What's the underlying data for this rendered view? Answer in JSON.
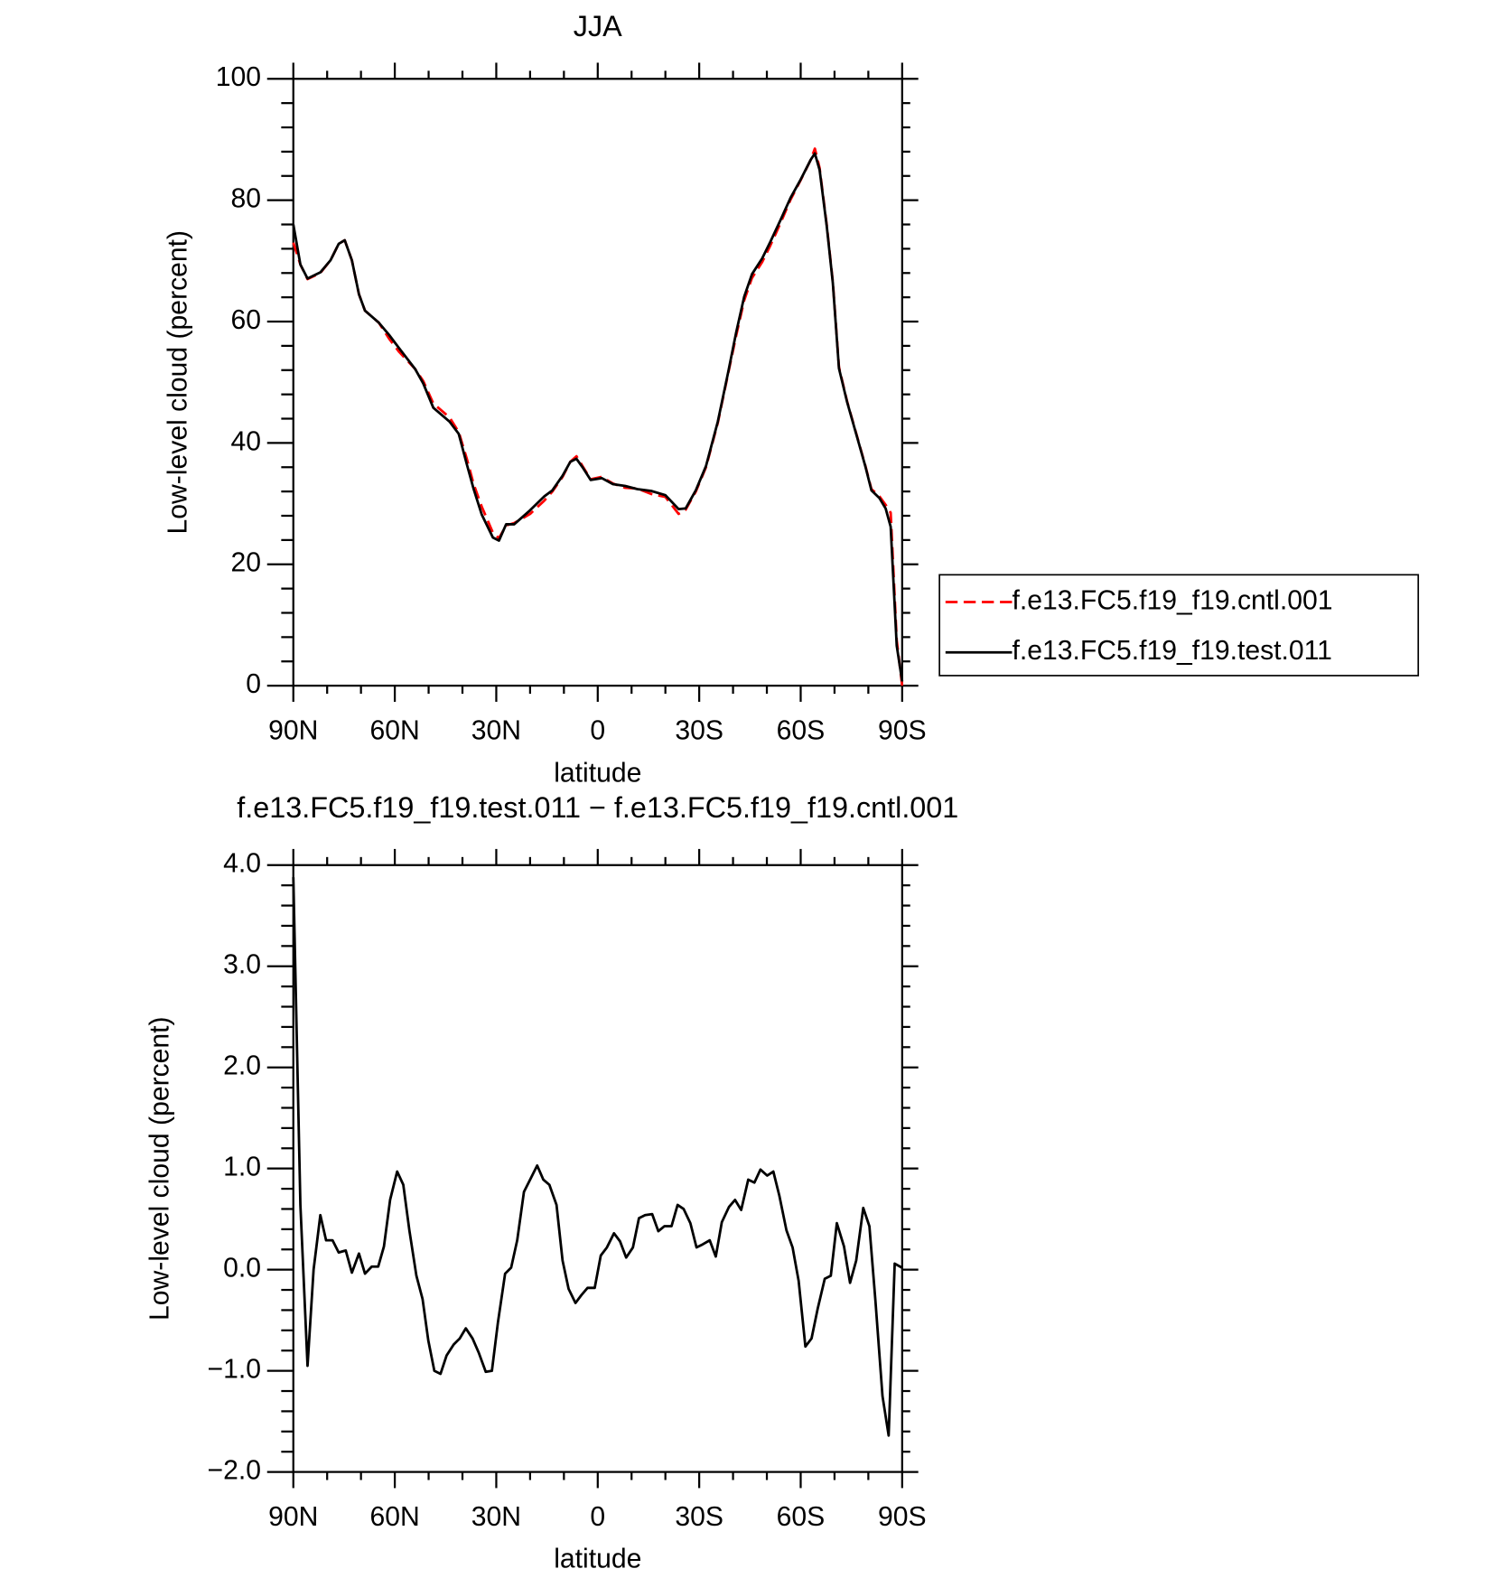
{
  "chart_data": [
    {
      "type": "line",
      "title": "JJA",
      "xlabel": "latitude",
      "ylabel": "Low-level cloud (percent)",
      "x": [
        90,
        87.9,
        85.8,
        82,
        79,
        76.6,
        74.8,
        72.7,
        70.6,
        68.8,
        64.7,
        61.7,
        58.7,
        54,
        51.6,
        48.6,
        43.8,
        41.1,
        38.7,
        36.7,
        34.3,
        31,
        29.2,
        27.1,
        24.7,
        20,
        15.8,
        13.4,
        10.4,
        8.1,
        6.3,
        4.5,
        2.1,
        -1.2,
        -4.5,
        -8.1,
        -11.7,
        -15.8,
        -20,
        -23.9,
        -26,
        -29,
        -32,
        -35.5,
        -38.5,
        -40.9,
        -43.3,
        -45.6,
        -48.6,
        -51,
        -54,
        -57,
        -60,
        -63,
        -64.2,
        -65.6,
        -67.7,
        -69.5,
        -71.3,
        -73.7,
        -76.7,
        -79.1,
        -80.9,
        -83.3,
        -85.1,
        -86.6,
        -88.4,
        -90
      ],
      "series": [
        {
          "name": "f.e13.FC5.f19_f19.cntl.001",
          "color": "#ff0000",
          "dashed": true,
          "values": [
            73,
            69.4,
            67.0,
            68,
            70.1,
            72.8,
            73.4,
            70.1,
            64.5,
            61.8,
            59.8,
            57.2,
            55.0,
            52.2,
            50.2,
            46.5,
            44.2,
            41.8,
            37.4,
            33.2,
            29.5,
            25.2,
            24.3,
            26.4,
            26.8,
            28.3,
            30.5,
            32.0,
            34.4,
            36.9,
            37.8,
            36.2,
            34.0,
            34.4,
            33.3,
            32.6,
            32.5,
            31.6,
            31.1,
            28.3,
            29.0,
            32.0,
            36.0,
            43.3,
            51.3,
            57.6,
            63.5,
            67.2,
            69.8,
            72.5,
            76.2,
            80.1,
            83.3,
            86.7,
            88.5,
            85.3,
            75.9,
            66.6,
            52.5,
            46.9,
            41.0,
            36.3,
            32.4,
            31.2,
            29.8,
            28.5,
            7.5,
            0
          ]
        },
        {
          "name": "f.e13.FC5.f19_f19.test.011",
          "color": "#000000",
          "dashed": false,
          "values": [
            76,
            69.4,
            67.1,
            68.1,
            70.1,
            72.8,
            73.4,
            70.1,
            64.5,
            61.8,
            59.8,
            57.8,
            55.6,
            52.2,
            49.8,
            45.8,
            43.5,
            41.5,
            36.5,
            32.4,
            28.2,
            24.4,
            23.9,
            26.6,
            26.6,
            28.9,
            31.2,
            32.2,
            34.6,
            36.9,
            37.4,
            36,
            33.9,
            34.2,
            33.2,
            32.9,
            32.4,
            32.1,
            31.4,
            29.1,
            29.2,
            32.2,
            36.2,
            43.5,
            51.5,
            58.1,
            64.1,
            67.8,
            70.4,
            73.1,
            76.7,
            80.4,
            83.4,
            86.7,
            87.7,
            85,
            75.7,
            66.4,
            52.3,
            46.8,
            40.9,
            36.2,
            32.2,
            30.9,
            29.2,
            26.2,
            6.6,
            0.7
          ]
        }
      ],
      "xlim": [
        90,
        -90
      ],
      "xticks": [
        {
          "value": 90,
          "label": "90N"
        },
        {
          "value": 60,
          "label": "60N"
        },
        {
          "value": 30,
          "label": "30N"
        },
        0,
        {
          "value": -30,
          "label": "30S"
        },
        {
          "value": -60,
          "label": "60S"
        },
        {
          "value": -90,
          "label": "90S"
        }
      ],
      "ylim": [
        0,
        100
      ],
      "yticks": [
        0,
        20,
        40,
        60,
        80,
        100
      ],
      "legend": "right"
    },
    {
      "type": "line",
      "title": "f.e13.FC5.f19_f19.test.011 − f.e13.FC5.f19_f19.cntl.001",
      "xlabel": "latitude",
      "ylabel": "Low-level cloud (percent)",
      "x": [
        90,
        87.9,
        85.8,
        84,
        82,
        80.3,
        78.4,
        76.6,
        74.5,
        72.7,
        70.6,
        68.8,
        66.8,
        64.9,
        63.2,
        61.4,
        59.3,
        57.5,
        55.7,
        53.6,
        51.8,
        50.1,
        48.3,
        46.5,
        44.7,
        42.6,
        40.8,
        39,
        37,
        35.2,
        33.1,
        31.3,
        29.5,
        27.4,
        25.6,
        23.8,
        21.8,
        20,
        17.9,
        16.1,
        14.3,
        12.2,
        10.4,
        8.6,
        6.6,
        4.8,
        3,
        0.9,
        -0.9,
        -2.7,
        -4.8,
        -6.6,
        -8.4,
        -10.4,
        -12.2,
        -14,
        -16.1,
        -17.9,
        -19.7,
        -21.8,
        -23.6,
        -25.4,
        -27.4,
        -29.2,
        -31,
        -33.1,
        -34.9,
        -36.7,
        -38.8,
        -40.6,
        -42.4,
        -44.5,
        -46.3,
        -48.1,
        -50.1,
        -51.9,
        -53.7,
        -55.8,
        -57.6,
        -59.4,
        -61.4,
        -63.2,
        -65,
        -67.1,
        -68.9,
        -70.7,
        -72.8,
        -74.6,
        -76.4,
        -78.5,
        -80.3,
        -82.1,
        -84.2,
        -86,
        -87.8,
        -89.9
      ],
      "color": "#000000",
      "values": [
        3.88,
        0.64,
        -0.95,
        0,
        0.54,
        0.29,
        0.29,
        0.17,
        0.19,
        -0.03,
        0.16,
        -0.04,
        0.03,
        0.03,
        0.23,
        0.69,
        0.97,
        0.84,
        0.39,
        -0.06,
        -0.29,
        -0.7,
        -1.0,
        -1.03,
        -0.85,
        -0.74,
        -0.68,
        -0.58,
        -0.68,
        -0.82,
        -1.01,
        -1.0,
        -0.52,
        -0.04,
        0.02,
        0.29,
        0.77,
        0.89,
        1.03,
        0.89,
        0.84,
        0.64,
        0.09,
        -0.19,
        -0.33,
        -0.25,
        -0.18,
        -0.18,
        0.14,
        0.22,
        0.36,
        0.28,
        0.12,
        0.22,
        0.51,
        0.54,
        0.55,
        0.38,
        0.43,
        0.43,
        0.64,
        0.6,
        0.46,
        0.22,
        0.25,
        0.29,
        0.13,
        0.47,
        0.62,
        0.69,
        0.59,
        0.89,
        0.86,
        0.99,
        0.93,
        0.97,
        0.73,
        0.39,
        0.22,
        -0.11,
        -0.76,
        -0.68,
        -0.39,
        -0.09,
        -0.06,
        0.46,
        0.23,
        -0.13,
        0.09,
        0.61,
        0.43,
        -0.31,
        -1.25,
        -1.64,
        0.06,
        0.02
      ],
      "xlim": [
        90,
        -90
      ],
      "xticks": [
        {
          "value": 90,
          "label": "90N"
        },
        {
          "value": 60,
          "label": "60N"
        },
        {
          "value": 30,
          "label": "30N"
        },
        0,
        {
          "value": -30,
          "label": "30S"
        },
        {
          "value": -60,
          "label": "60S"
        },
        {
          "value": -90,
          "label": "90S"
        }
      ],
      "ylim": [
        -2,
        4
      ],
      "yticks": [
        {
          "value": -2,
          "label": "−2.0"
        },
        {
          "value": -1,
          "label": "−1.0"
        },
        {
          "value": 0,
          "label": "0.0"
        },
        {
          "value": 1,
          "label": "1.0"
        },
        {
          "value": 2,
          "label": "2.0"
        },
        {
          "value": 3,
          "label": "3.0"
        },
        {
          "value": 4,
          "label": "4.0"
        }
      ]
    }
  ]
}
